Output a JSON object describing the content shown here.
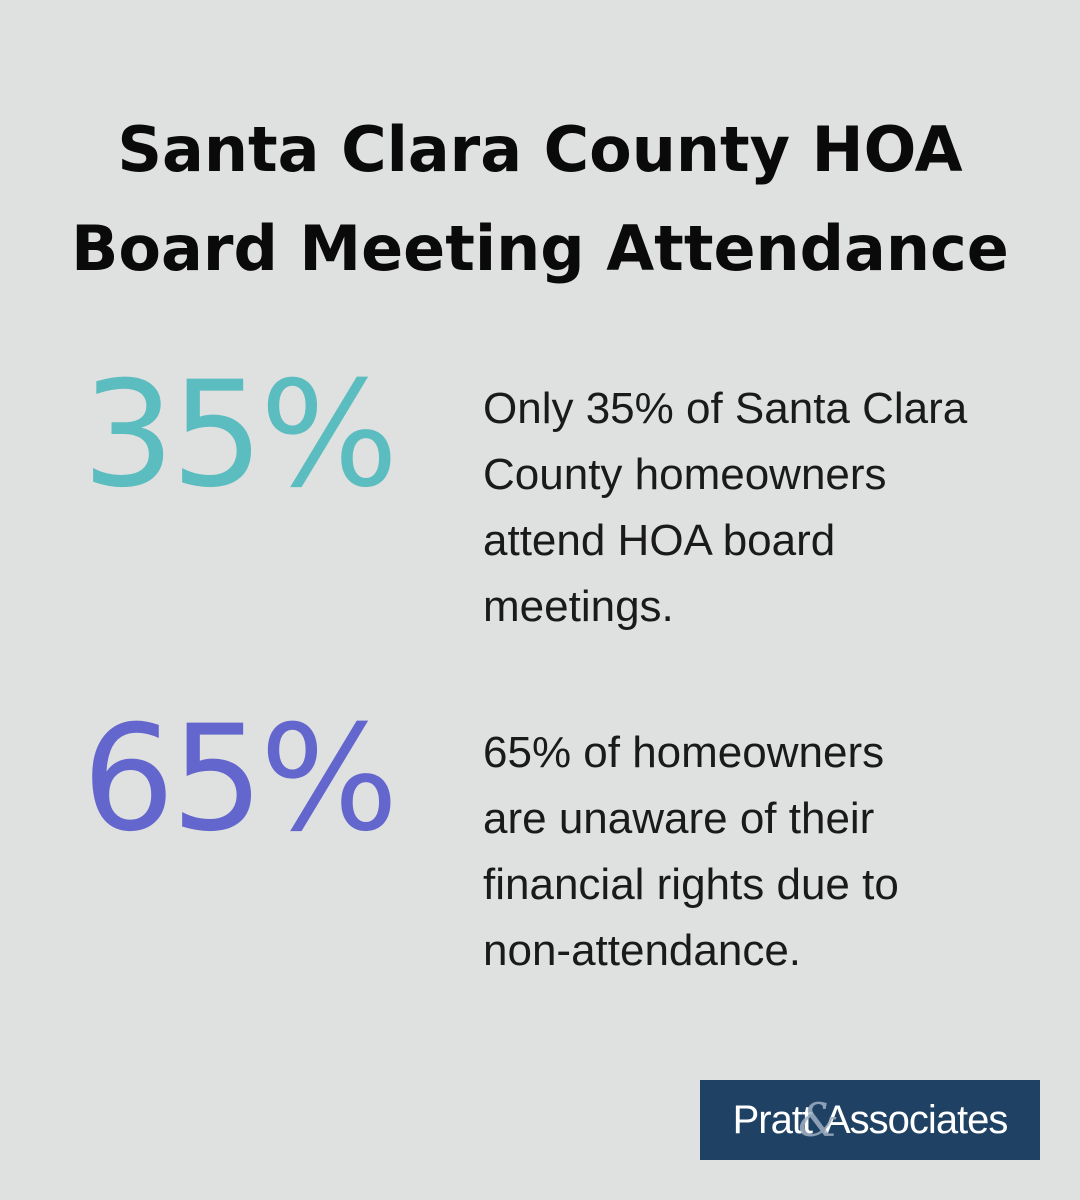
{
  "title": {
    "line1": "Santa Clara County HOA",
    "line2": "Board Meeting Attendance"
  },
  "stats": [
    {
      "value": "35%",
      "color": "#5bbdbf",
      "lines": [
        "Only 35% of Santa Clara",
        "County homeowners",
        "attend HOA board",
        "meetings."
      ]
    },
    {
      "value": "65%",
      "color": "#6366cc",
      "lines": [
        "65% of homeowners",
        "are unaware of their",
        "financial rights due to",
        "non-attendance."
      ]
    }
  ],
  "logo": {
    "part1": "Pratt",
    "amp": "&",
    "part2": "Associates",
    "color": "#1f4264"
  }
}
